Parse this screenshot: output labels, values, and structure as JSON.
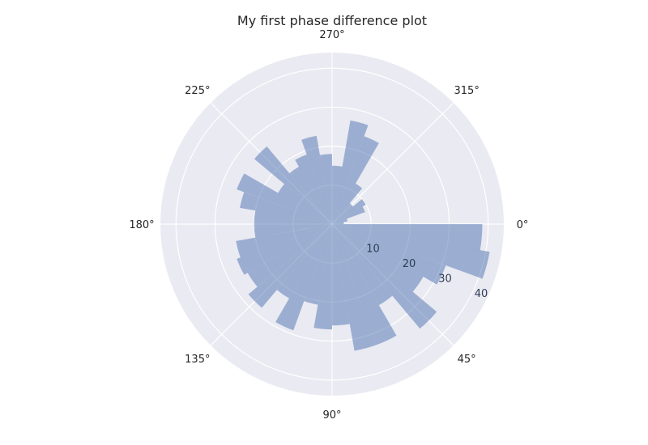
{
  "chart_data": {
    "type": "polar-bar",
    "title": "My first phase difference plot",
    "theta_direction": "clockwise",
    "theta_zero_location": "E",
    "angle_tick_labels": [
      {
        "deg": 0,
        "label": "0°"
      },
      {
        "deg": 45,
        "label": "45°"
      },
      {
        "deg": 90,
        "label": "90°"
      },
      {
        "deg": 135,
        "label": "135°"
      },
      {
        "deg": 180,
        "label": "180°"
      },
      {
        "deg": 225,
        "label": "225°"
      },
      {
        "deg": 270,
        "label": "270°"
      },
      {
        "deg": 315,
        "label": "315°"
      }
    ],
    "radial_ticks": [
      10,
      20,
      30,
      40
    ],
    "radial_tick_labels": [
      "10",
      "20",
      "30",
      "40"
    ],
    "rlim": [
      0,
      44
    ],
    "bin_width_deg": 10,
    "bins": [
      {
        "theta": 0,
        "value": 38.5
      },
      {
        "theta": 10,
        "value": 41
      },
      {
        "theta": 20,
        "value": 31
      },
      {
        "theta": 30,
        "value": 27
      },
      {
        "theta": 40,
        "value": 35
      },
      {
        "theta": 50,
        "value": 24
      },
      {
        "theta": 60,
        "value": 33
      },
      {
        "theta": 70,
        "value": 33
      },
      {
        "theta": 80,
        "value": 26
      },
      {
        "theta": 90,
        "value": 27
      },
      {
        "theta": 100,
        "value": 21
      },
      {
        "theta": 110,
        "value": 29
      },
      {
        "theta": 120,
        "value": 22
      },
      {
        "theta": 130,
        "value": 28
      },
      {
        "theta": 140,
        "value": 25
      },
      {
        "theta": 150,
        "value": 26
      },
      {
        "theta": 160,
        "value": 25
      },
      {
        "theta": 170,
        "value": 20
      },
      {
        "theta": 180,
        "value": 20
      },
      {
        "theta": 190,
        "value": 24
      },
      {
        "theta": 200,
        "value": 26
      },
      {
        "theta": 210,
        "value": 16
      },
      {
        "theta": 220,
        "value": 26
      },
      {
        "theta": 230,
        "value": 17
      },
      {
        "theta": 240,
        "value": 19
      },
      {
        "theta": 250,
        "value": 23
      },
      {
        "theta": 260,
        "value": 18
      },
      {
        "theta": 270,
        "value": 15
      },
      {
        "theta": 280,
        "value": 27
      },
      {
        "theta": 290,
        "value": 24
      },
      {
        "theta": 300,
        "value": 12
      },
      {
        "theta": 310,
        "value": 7
      },
      {
        "theta": 320,
        "value": 10
      },
      {
        "theta": 330,
        "value": 9
      },
      {
        "theta": 340,
        "value": 4
      },
      {
        "theta": 350,
        "value": 3
      }
    ],
    "grid": true,
    "colors": {
      "bar_fill": "#4c72b0",
      "bar_opacity": 0.5,
      "axes_background": "#eaeaf2",
      "grid": "#ffffff",
      "text": "#262626",
      "radial_label": "#2f3d55"
    }
  }
}
